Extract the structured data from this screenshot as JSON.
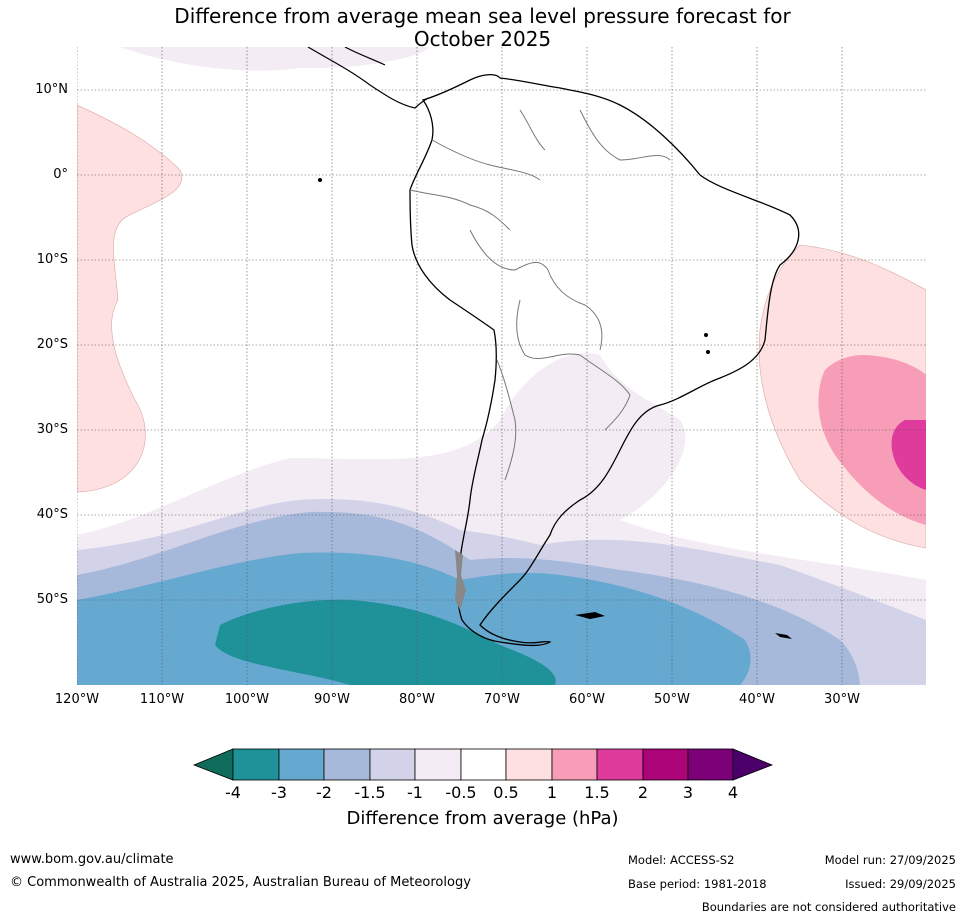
{
  "title": {
    "line1": "Difference from average mean sea level pressure forecast for",
    "line2": "October 2025"
  },
  "map": {
    "latitude_labels": [
      "10°N",
      "0°",
      "10°S",
      "20°S",
      "30°S",
      "40°S",
      "50°S"
    ],
    "longitude_labels": [
      "120°W",
      "110°W",
      "100°W",
      "90°W",
      "80°W",
      "70°W",
      "60°W",
      "50°W",
      "40°W",
      "30°W"
    ]
  },
  "colorbar": {
    "title": "Difference from average (hPa)",
    "tick_labels": [
      "-4",
      "-3",
      "-2",
      "-1.5",
      "-1",
      "-0.5",
      "0.5",
      "1",
      "1.5",
      "2",
      "3",
      "4"
    ],
    "colors": [
      "#0f6b5a",
      "#1f9198",
      "#66a9d0",
      "#a7b9db",
      "#d2d3e8",
      "#f3ecf4",
      "#ffffff",
      "#fde0df",
      "#f79db7",
      "#de3b9c",
      "#ae0479",
      "#7c0077",
      "#4a0068"
    ]
  },
  "footer": {
    "website": "www.bom.gov.au/climate",
    "copyright": "© Commonwealth of Australia 2025, Australian Bureau of Meteorology",
    "model": "Model: ACCESS-S2",
    "base_period": "Base period: 1981-2018",
    "model_run": "Model run: 27/09/2025",
    "issued": "Issued: 29/09/2025",
    "disclaimer": "Boundaries are not considered authoritative"
  }
}
